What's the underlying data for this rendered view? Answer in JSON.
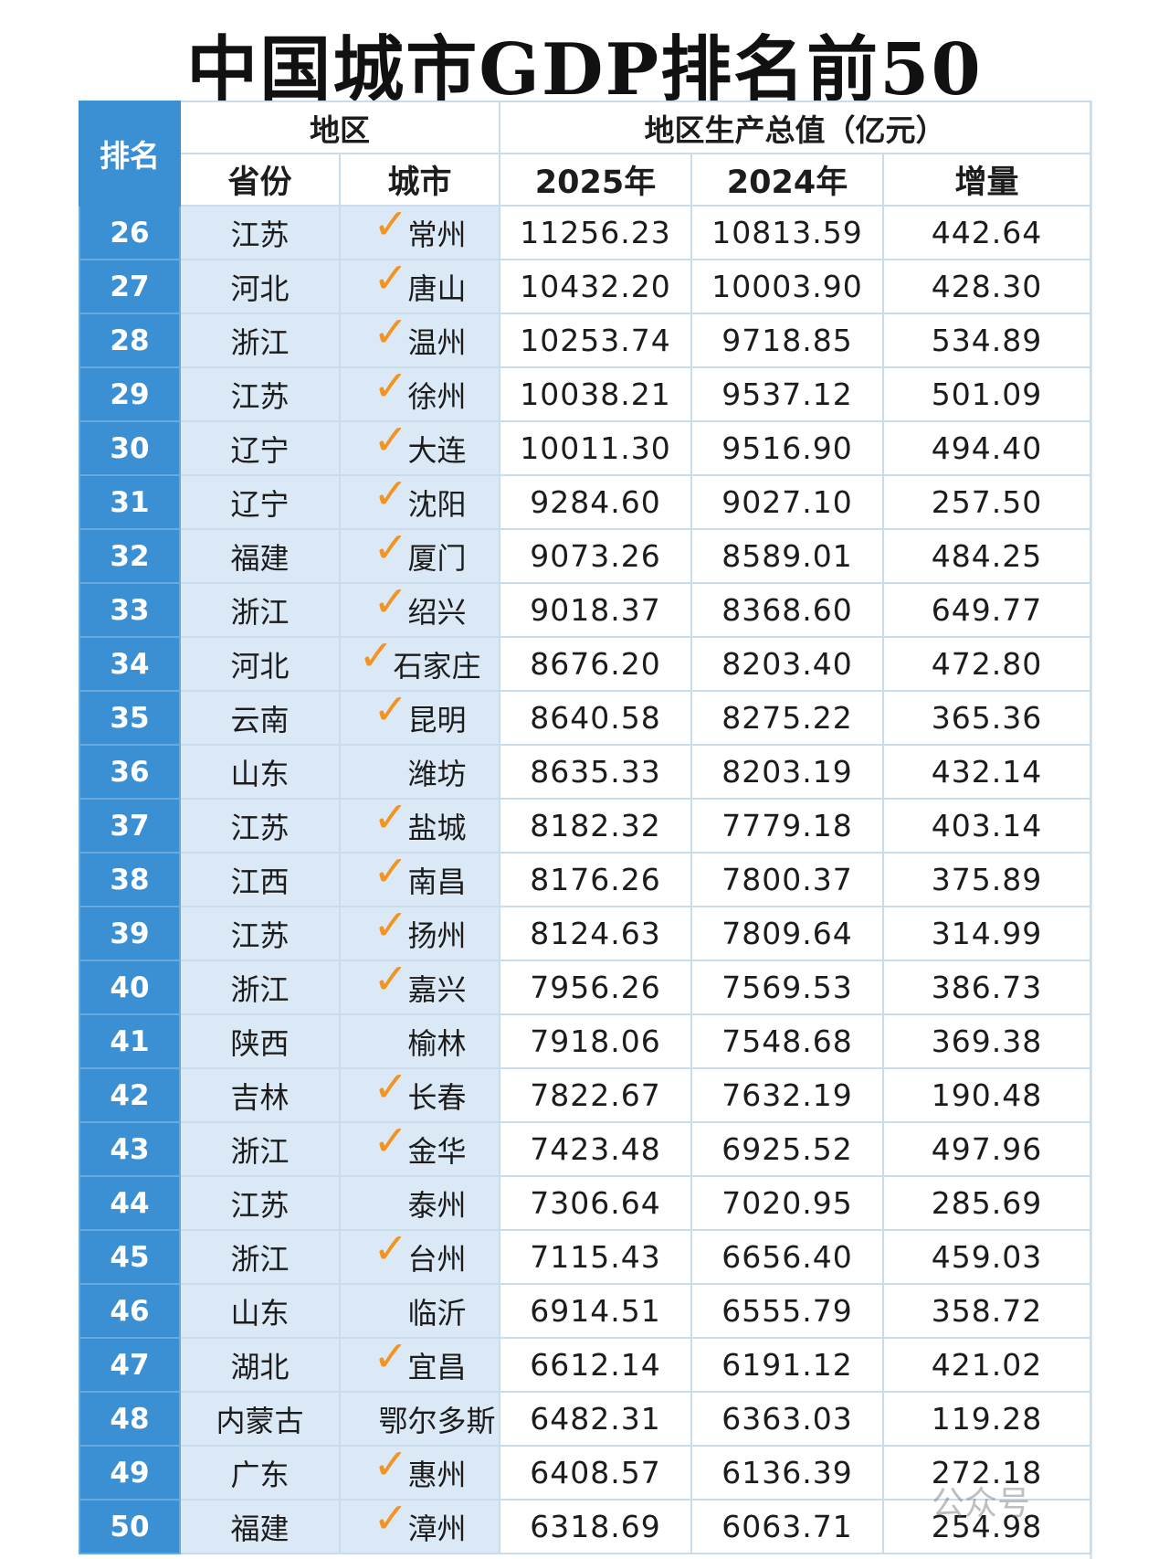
{
  "title": "中国城市GDP排名前50",
  "headers": {
    "rank": "排名",
    "region": "地区",
    "gdp_group": "地区生产总值（亿元）",
    "province": "省份",
    "city": "城市",
    "y2025": "2025年",
    "y2024": "2024年",
    "increase": "增量"
  },
  "checkmark_color": "#f29422",
  "rows": [
    {
      "rank": "26",
      "province": "江苏",
      "city": "常州",
      "checked": true,
      "gdp2025": "11256.23",
      "gdp2024": "10813.59",
      "increase": "442.64"
    },
    {
      "rank": "27",
      "province": "河北",
      "city": "唐山",
      "checked": true,
      "gdp2025": "10432.20",
      "gdp2024": "10003.90",
      "increase": "428.30"
    },
    {
      "rank": "28",
      "province": "浙江",
      "city": "温州",
      "checked": true,
      "gdp2025": "10253.74",
      "gdp2024": "9718.85",
      "increase": "534.89"
    },
    {
      "rank": "29",
      "province": "江苏",
      "city": "徐州",
      "checked": true,
      "gdp2025": "10038.21",
      "gdp2024": "9537.12",
      "increase": "501.09"
    },
    {
      "rank": "30",
      "province": "辽宁",
      "city": "大连",
      "checked": true,
      "gdp2025": "10011.30",
      "gdp2024": "9516.90",
      "increase": "494.40"
    },
    {
      "rank": "31",
      "province": "辽宁",
      "city": "沈阳",
      "checked": true,
      "gdp2025": "9284.60",
      "gdp2024": "9027.10",
      "increase": "257.50"
    },
    {
      "rank": "32",
      "province": "福建",
      "city": "厦门",
      "checked": true,
      "gdp2025": "9073.26",
      "gdp2024": "8589.01",
      "increase": "484.25"
    },
    {
      "rank": "33",
      "province": "浙江",
      "city": "绍兴",
      "checked": true,
      "gdp2025": "9018.37",
      "gdp2024": "8368.60",
      "increase": "649.77"
    },
    {
      "rank": "34",
      "province": "河北",
      "city": "石家庄",
      "checked": true,
      "gdp2025": "8676.20",
      "gdp2024": "8203.40",
      "increase": "472.80"
    },
    {
      "rank": "35",
      "province": "云南",
      "city": "昆明",
      "checked": true,
      "gdp2025": "8640.58",
      "gdp2024": "8275.22",
      "increase": "365.36"
    },
    {
      "rank": "36",
      "province": "山东",
      "city": "潍坊",
      "checked": false,
      "gdp2025": "8635.33",
      "gdp2024": "8203.19",
      "increase": "432.14"
    },
    {
      "rank": "37",
      "province": "江苏",
      "city": "盐城",
      "checked": true,
      "gdp2025": "8182.32",
      "gdp2024": "7779.18",
      "increase": "403.14"
    },
    {
      "rank": "38",
      "province": "江西",
      "city": "南昌",
      "checked": true,
      "gdp2025": "8176.26",
      "gdp2024": "7800.37",
      "increase": "375.89"
    },
    {
      "rank": "39",
      "province": "江苏",
      "city": "扬州",
      "checked": true,
      "gdp2025": "8124.63",
      "gdp2024": "7809.64",
      "increase": "314.99"
    },
    {
      "rank": "40",
      "province": "浙江",
      "city": "嘉兴",
      "checked": true,
      "gdp2025": "7956.26",
      "gdp2024": "7569.53",
      "increase": "386.73"
    },
    {
      "rank": "41",
      "province": "陕西",
      "city": "榆林",
      "checked": false,
      "gdp2025": "7918.06",
      "gdp2024": "7548.68",
      "increase": "369.38"
    },
    {
      "rank": "42",
      "province": "吉林",
      "city": "长春",
      "checked": true,
      "gdp2025": "7822.67",
      "gdp2024": "7632.19",
      "increase": "190.48"
    },
    {
      "rank": "43",
      "province": "浙江",
      "city": "金华",
      "checked": true,
      "gdp2025": "7423.48",
      "gdp2024": "6925.52",
      "increase": "497.96"
    },
    {
      "rank": "44",
      "province": "江苏",
      "city": "泰州",
      "checked": false,
      "gdp2025": "7306.64",
      "gdp2024": "7020.95",
      "increase": "285.69"
    },
    {
      "rank": "45",
      "province": "浙江",
      "city": "台州",
      "checked": true,
      "gdp2025": "7115.43",
      "gdp2024": "6656.40",
      "increase": "459.03"
    },
    {
      "rank": "46",
      "province": "山东",
      "city": "临沂",
      "checked": false,
      "gdp2025": "6914.51",
      "gdp2024": "6555.79",
      "increase": "358.72"
    },
    {
      "rank": "47",
      "province": "湖北",
      "city": "宜昌",
      "checked": true,
      "gdp2025": "6612.14",
      "gdp2024": "6191.12",
      "increase": "421.02"
    },
    {
      "rank": "48",
      "province": "内蒙古",
      "city": "鄂尔多斯",
      "checked": false,
      "gdp2025": "6482.31",
      "gdp2024": "6363.03",
      "increase": "119.28"
    },
    {
      "rank": "49",
      "province": "广东",
      "city": "惠州",
      "checked": true,
      "gdp2025": "6408.57",
      "gdp2024": "6136.39",
      "increase": "272.18"
    },
    {
      "rank": "50",
      "province": "福建",
      "city": "漳州",
      "checked": true,
      "gdp2025": "6318.69",
      "gdp2024": "6063.71",
      "increase": "254.98"
    }
  ],
  "watermark": "公众号"
}
